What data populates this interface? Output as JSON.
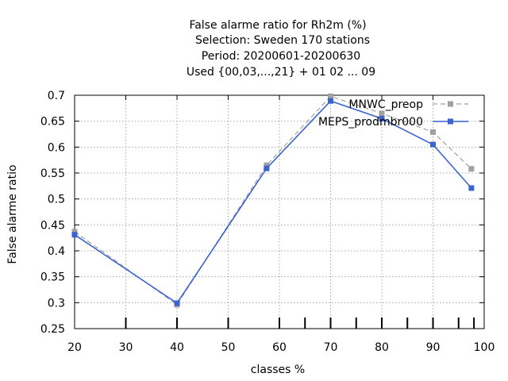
{
  "chart_data": {
    "type": "line",
    "title_lines": [
      "False alarme ratio  for Rh2m (%)",
      "Selection: Sweden    170 stations",
      "Period: 20200601-20200630",
      "Used {00,03,...,21} + 01 02 ... 09"
    ],
    "xlabel": "classes %",
    "ylabel": "False alarme ratio",
    "xlim": [
      20,
      100
    ],
    "ylim": [
      0.25,
      0.7
    ],
    "x_ticks": [
      20,
      30,
      40,
      50,
      60,
      70,
      80,
      90,
      100
    ],
    "y_ticks": [
      0.25,
      0.3,
      0.35,
      0.4,
      0.45,
      0.5,
      0.55,
      0.6,
      0.65,
      0.7
    ],
    "x_tick_labels": [
      "20",
      "30",
      "40",
      "50",
      "60",
      "70",
      "80",
      "90",
      "100"
    ],
    "y_tick_labels": [
      "0.25",
      "0.3",
      "0.35",
      "0.4",
      "0.45",
      "0.5",
      "0.55",
      "0.6",
      "0.65",
      "0.7"
    ],
    "grid": true,
    "legend_position": "top-right",
    "bottom_marks_x": [
      30,
      40,
      50,
      60,
      65,
      70,
      75,
      80,
      85,
      90,
      95,
      98
    ],
    "series": [
      {
        "name": "MNWC_preop",
        "color": "#a0a0a0",
        "dashed": true,
        "x": [
          20,
          40,
          57.5,
          70,
          80,
          90,
          97.5
        ],
        "y": [
          0.437,
          0.296,
          0.565,
          0.698,
          0.665,
          0.629,
          0.558
        ]
      },
      {
        "name": "MEPS_prodmbr000",
        "color": "#3b64cf",
        "dashed": false,
        "x": [
          20,
          40,
          57.5,
          70,
          80,
          90,
          97.5
        ],
        "y": [
          0.431,
          0.299,
          0.559,
          0.689,
          0.655,
          0.605,
          0.521
        ]
      }
    ]
  }
}
